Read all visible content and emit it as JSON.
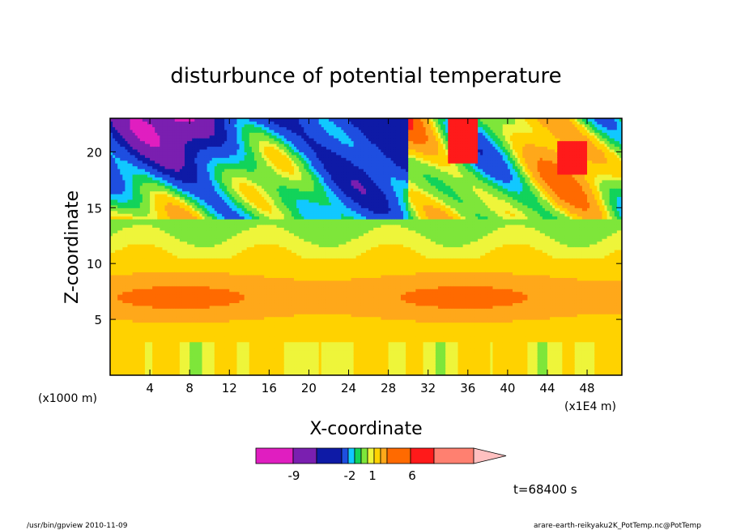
{
  "chart_data": {
    "type": "heatmap",
    "title": "disturbunce of potential temperature",
    "xlabel": "X-coordinate",
    "ylabel": "Z-coordinate",
    "x_unit_left": "(x1000 m)",
    "x_unit_right": "(x1E4 m)",
    "xlim": [
      0,
      51.5
    ],
    "ylim": [
      0,
      23
    ],
    "x_ticks": [
      4,
      8,
      12,
      16,
      20,
      24,
      28,
      32,
      36,
      40,
      44,
      48
    ],
    "y_ticks": [
      5,
      10,
      15,
      20
    ],
    "colorbar": {
      "colors": [
        "#e01ec0",
        "#7a1fb0",
        "#0e1aa6",
        "#1e4ee0",
        "#11c8ff",
        "#12d35a",
        "#7ee63a",
        "#eef53a",
        "#ffd200",
        "#ffa81a",
        "#ff6a00",
        "#ff1a1a",
        "#ff8070",
        "#ffc0c0"
      ],
      "tick_labels": [
        "-9",
        "-2",
        "1",
        "6"
      ],
      "extends_right": true
    },
    "time_label": "t=68400 s",
    "description_levels": {
      "lower_layer": "mostly weakly positive (orange/yellow)",
      "middle_band_z_5_to_9": "positive maximum (dark orange)",
      "upper_layer_z_15_to_23": "strong negative (blue/purple) cores and positive (red) cores"
    }
  },
  "footer": {
    "left": "/usr/bin/gpview  2010-11-09",
    "right": "arare-earth-reikyaku2K_PotTemp.nc@PotTemp"
  },
  "colors": {
    "background": "#ffffff",
    "axis": "#000000",
    "contour": "#000000"
  }
}
